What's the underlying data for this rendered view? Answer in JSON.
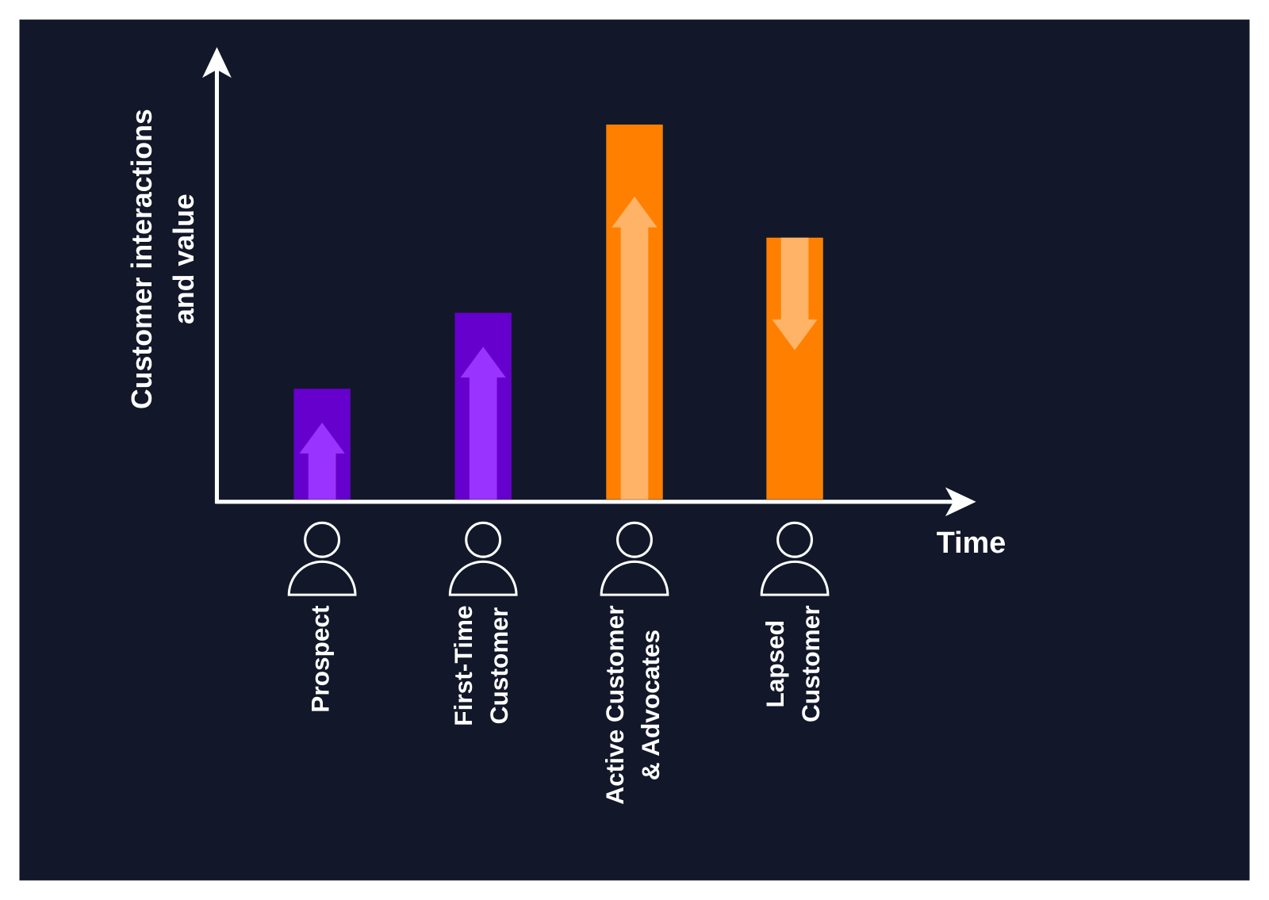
{
  "chart_data": {
    "type": "bar",
    "y_label": [
      "Customer interactions",
      "and value"
    ],
    "x_label": "Time",
    "categories": [
      [
        "Prospect"
      ],
      [
        "First-Time",
        "Customer"
      ],
      [
        "Active Customer",
        "& Advocates"
      ],
      [
        "Lapsed",
        "Customer"
      ]
    ],
    "values": [
      137,
      231,
      464,
      324
    ],
    "colors": [
      "#6600cc",
      "#6600cc",
      "#ff8000",
      "#ff8000"
    ],
    "arrow_colors": [
      "#9933ff",
      "#9933ff",
      "#ffb366",
      "#ffb366"
    ],
    "trends": [
      "up",
      "up",
      "up",
      "down"
    ],
    "ylim": [
      0,
      560
    ]
  }
}
